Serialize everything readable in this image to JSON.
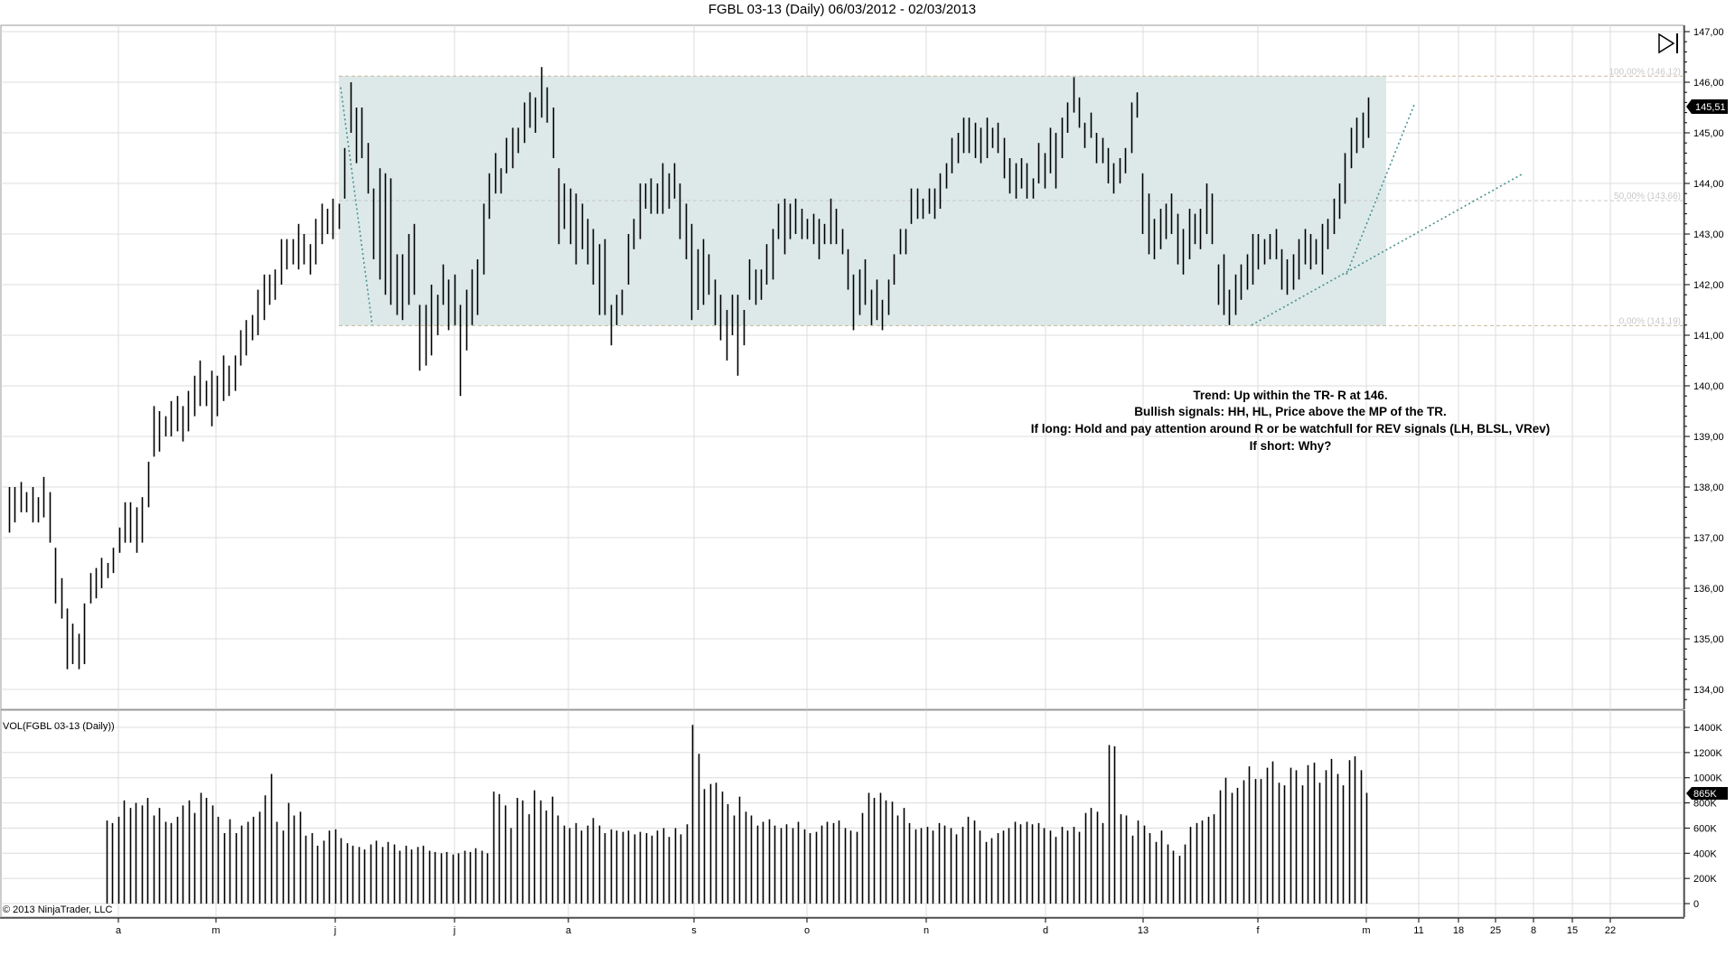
{
  "chart_title": "FGBL 03-13 (Daily)  06/03/2012 - 02/03/2013",
  "copyright": "© 2013 NinjaTrader, LLC",
  "volume_label": "VOL(FGBL 03-13 (Daily))",
  "colors": {
    "bar": "#000000",
    "range_fill": "#dde9e9",
    "range_border": "#c8b89a",
    "trendline": "#4a9090",
    "grid": "#dcdcdc",
    "price_marker_bg": "#000000"
  },
  "annotations": [
    "Trend: Up within the TR- R at 146.",
    "Bullish signals: HH, HL, Price above the MP of the TR.",
    "If long: Hold and pay attention around R or be watchfull for REV signals (LH, BLSL, VRev)",
    "If short: Why?"
  ],
  "fib_levels": [
    {
      "label": "100,00% (146,12)",
      "value": 146.12
    },
    {
      "label": "50,00% (143,66)",
      "value": 143.66
    },
    {
      "label": "0,00% (141,19)",
      "value": 141.19
    }
  ],
  "current_price_label": "145,51",
  "current_volume_label": "865K",
  "chart_data": [
    {
      "type": "ohlc",
      "title": "FGBL 03-13 (Daily)  06/03/2012 - 02/03/2013",
      "ylim": [
        133.8,
        147.1
      ],
      "y_ticks": [
        "147,00",
        "146,00",
        "145,00",
        "144,00",
        "143,00",
        "142,00",
        "141,00",
        "140,00",
        "139,00",
        "138,00",
        "137,00",
        "136,00",
        "135,00",
        "134,00"
      ],
      "x_tick_labels": [
        "a",
        "m",
        "j",
        "j",
        "a",
        "s",
        "o",
        "n",
        "d",
        "13",
        "f",
        "m",
        "11",
        "18",
        "25",
        "8",
        "15",
        "22"
      ],
      "bars_high_low": [
        [
          138.0,
          137.1
        ],
        [
          138.0,
          137.3
        ],
        [
          138.1,
          137.5
        ],
        [
          137.9,
          137.5
        ],
        [
          138.0,
          137.3
        ],
        [
          137.8,
          137.3
        ],
        [
          138.2,
          137.4
        ],
        [
          137.9,
          136.9
        ],
        [
          136.8,
          135.7
        ],
        [
          136.2,
          135.4
        ],
        [
          135.6,
          134.4
        ],
        [
          135.3,
          134.5
        ],
        [
          135.1,
          134.4
        ],
        [
          135.7,
          134.5
        ],
        [
          136.3,
          135.7
        ],
        [
          136.4,
          135.8
        ],
        [
          136.6,
          136.0
        ],
        [
          136.5,
          136.2
        ],
        [
          136.8,
          136.3
        ],
        [
          137.2,
          136.7
        ],
        [
          137.7,
          136.9
        ],
        [
          137.7,
          136.9
        ],
        [
          137.6,
          136.7
        ],
        [
          137.8,
          136.9
        ],
        [
          138.5,
          137.6
        ],
        [
          139.6,
          138.6
        ],
        [
          139.5,
          138.7
        ],
        [
          139.4,
          139.0
        ],
        [
          139.7,
          139.0
        ],
        [
          139.8,
          139.1
        ],
        [
          139.6,
          138.9
        ],
        [
          139.9,
          139.1
        ],
        [
          140.2,
          139.4
        ],
        [
          140.5,
          139.6
        ],
        [
          140.1,
          139.6
        ],
        [
          140.3,
          139.2
        ],
        [
          140.2,
          139.4
        ],
        [
          140.6,
          139.7
        ],
        [
          140.4,
          139.8
        ],
        [
          140.6,
          139.9
        ],
        [
          141.1,
          140.4
        ],
        [
          141.3,
          140.6
        ],
        [
          141.4,
          140.9
        ],
        [
          141.9,
          141.0
        ],
        [
          142.2,
          141.3
        ],
        [
          142.2,
          141.6
        ],
        [
          142.3,
          141.7
        ],
        [
          142.9,
          142.0
        ],
        [
          142.9,
          142.3
        ],
        [
          142.9,
          142.4
        ],
        [
          143.2,
          142.3
        ],
        [
          143.0,
          142.4
        ],
        [
          142.8,
          142.2
        ],
        [
          143.3,
          142.4
        ],
        [
          143.6,
          142.8
        ],
        [
          143.5,
          143.0
        ],
        [
          143.7,
          142.9
        ],
        [
          143.6,
          143.1
        ],
        [
          144.7,
          143.7
        ],
        [
          146.0,
          145.0
        ],
        [
          145.5,
          144.4
        ],
        [
          145.5,
          144.5
        ],
        [
          144.8,
          143.8
        ],
        [
          143.9,
          142.5
        ],
        [
          144.3,
          142.1
        ],
        [
          144.2,
          141.8
        ],
        [
          144.1,
          141.6
        ],
        [
          142.6,
          141.4
        ],
        [
          142.6,
          141.3
        ],
        [
          143.0,
          141.6
        ],
        [
          143.2,
          141.8
        ],
        [
          141.6,
          140.3
        ],
        [
          141.6,
          140.4
        ],
        [
          142.0,
          140.6
        ],
        [
          141.8,
          141.0
        ],
        [
          142.4,
          141.6
        ],
        [
          142.1,
          141.1
        ],
        [
          142.2,
          141.2
        ],
        [
          141.6,
          139.8
        ],
        [
          141.9,
          140.7
        ],
        [
          142.3,
          141.2
        ],
        [
          142.5,
          141.4
        ],
        [
          143.6,
          142.2
        ],
        [
          144.2,
          143.3
        ],
        [
          144.6,
          143.8
        ],
        [
          144.3,
          143.8
        ],
        [
          144.9,
          144.2
        ],
        [
          145.1,
          144.3
        ],
        [
          145.1,
          144.6
        ],
        [
          145.6,
          144.8
        ],
        [
          145.8,
          145.1
        ],
        [
          145.7,
          145.0
        ],
        [
          146.3,
          145.3
        ],
        [
          145.9,
          145.2
        ],
        [
          145.5,
          144.5
        ],
        [
          144.3,
          142.8
        ],
        [
          144.0,
          143.1
        ],
        [
          143.9,
          142.8
        ],
        [
          143.8,
          142.4
        ],
        [
          143.6,
          142.7
        ],
        [
          143.3,
          142.4
        ],
        [
          143.1,
          142.0
        ],
        [
          142.8,
          141.4
        ],
        [
          142.9,
          141.4
        ],
        [
          141.6,
          140.8
        ],
        [
          141.8,
          141.2
        ],
        [
          141.9,
          141.4
        ],
        [
          143.0,
          142.0
        ],
        [
          143.3,
          142.7
        ],
        [
          144.0,
          142.9
        ],
        [
          144.0,
          143.5
        ],
        [
          144.1,
          143.4
        ],
        [
          144.0,
          143.4
        ],
        [
          144.4,
          143.4
        ],
        [
          144.2,
          143.5
        ],
        [
          144.4,
          143.7
        ],
        [
          144.0,
          142.9
        ],
        [
          143.6,
          142.5
        ],
        [
          143.2,
          141.3
        ],
        [
          142.7,
          141.5
        ],
        [
          142.9,
          141.6
        ],
        [
          142.6,
          141.8
        ],
        [
          142.1,
          141.2
        ],
        [
          141.8,
          140.9
        ],
        [
          141.5,
          140.5
        ],
        [
          141.8,
          141.0
        ],
        [
          141.8,
          140.2
        ],
        [
          141.5,
          140.8
        ],
        [
          142.5,
          141.7
        ],
        [
          142.3,
          141.6
        ],
        [
          142.3,
          141.7
        ],
        [
          142.8,
          142.0
        ],
        [
          143.1,
          142.1
        ],
        [
          143.6,
          142.9
        ],
        [
          143.7,
          142.6
        ],
        [
          143.6,
          142.9
        ],
        [
          143.7,
          143.0
        ],
        [
          143.5,
          142.9
        ],
        [
          143.3,
          142.9
        ],
        [
          143.4,
          142.8
        ],
        [
          143.3,
          142.5
        ],
        [
          143.2,
          142.8
        ],
        [
          143.7,
          142.8
        ],
        [
          143.5,
          142.8
        ],
        [
          143.1,
          142.6
        ],
        [
          142.7,
          141.9
        ],
        [
          142.2,
          141.1
        ],
        [
          142.3,
          141.4
        ],
        [
          142.5,
          141.6
        ],
        [
          141.9,
          141.2
        ],
        [
          142.1,
          141.3
        ],
        [
          141.7,
          141.1
        ],
        [
          142.1,
          141.4
        ],
        [
          142.6,
          142.0
        ],
        [
          143.1,
          142.6
        ],
        [
          143.1,
          142.6
        ],
        [
          143.9,
          143.2
        ],
        [
          143.9,
          143.3
        ],
        [
          143.7,
          143.3
        ],
        [
          143.9,
          143.4
        ],
        [
          143.9,
          143.3
        ],
        [
          144.2,
          143.5
        ],
        [
          144.4,
          143.9
        ],
        [
          144.9,
          144.2
        ],
        [
          145.0,
          144.4
        ],
        [
          145.3,
          144.6
        ],
        [
          145.3,
          144.6
        ],
        [
          145.2,
          144.5
        ],
        [
          145.1,
          144.4
        ],
        [
          145.3,
          144.5
        ],
        [
          145.1,
          144.7
        ],
        [
          145.2,
          144.6
        ],
        [
          144.9,
          144.1
        ],
        [
          144.5,
          143.8
        ],
        [
          144.4,
          143.7
        ],
        [
          144.5,
          143.9
        ],
        [
          144.4,
          143.7
        ],
        [
          144.1,
          143.7
        ],
        [
          144.8,
          144.0
        ],
        [
          144.6,
          143.9
        ],
        [
          145.1,
          144.2
        ],
        [
          145.0,
          143.9
        ],
        [
          145.3,
          144.5
        ],
        [
          145.6,
          145.0
        ],
        [
          146.1,
          145.4
        ],
        [
          145.7,
          145.1
        ],
        [
          145.2,
          144.7
        ],
        [
          145.4,
          144.9
        ],
        [
          145.0,
          144.4
        ],
        [
          144.9,
          144.4
        ],
        [
          144.7,
          144.0
        ],
        [
          144.4,
          143.8
        ],
        [
          144.5,
          144.0
        ],
        [
          144.7,
          144.2
        ],
        [
          145.6,
          144.6
        ],
        [
          145.8,
          145.3
        ],
        [
          144.2,
          143.0
        ],
        [
          143.8,
          142.6
        ],
        [
          143.3,
          142.5
        ],
        [
          143.5,
          142.7
        ],
        [
          143.6,
          142.9
        ],
        [
          143.8,
          143.0
        ],
        [
          143.4,
          142.4
        ],
        [
          143.1,
          142.2
        ],
        [
          143.5,
          142.5
        ],
        [
          143.4,
          142.8
        ],
        [
          143.5,
          142.7
        ],
        [
          144.0,
          143.0
        ],
        [
          143.8,
          142.8
        ],
        [
          142.4,
          141.6
        ],
        [
          142.6,
          141.4
        ],
        [
          141.9,
          141.2
        ],
        [
          142.2,
          141.4
        ],
        [
          142.4,
          141.7
        ],
        [
          142.6,
          141.9
        ],
        [
          143.0,
          142.0
        ],
        [
          143.0,
          142.3
        ],
        [
          142.9,
          142.4
        ],
        [
          143.0,
          142.5
        ],
        [
          143.1,
          142.5
        ],
        [
          142.7,
          141.9
        ],
        [
          142.5,
          141.8
        ],
        [
          142.6,
          141.9
        ],
        [
          142.9,
          142.1
        ],
        [
          143.1,
          142.4
        ],
        [
          143.0,
          142.3
        ],
        [
          142.9,
          142.4
        ],
        [
          143.2,
          142.2
        ],
        [
          143.3,
          142.7
        ],
        [
          143.7,
          143.0
        ],
        [
          144.0,
          143.3
        ],
        [
          144.6,
          143.6
        ],
        [
          145.1,
          144.3
        ],
        [
          145.3,
          144.6
        ],
        [
          145.4,
          144.7
        ],
        [
          145.7,
          144.9
        ]
      ],
      "range_box": {
        "top": 146.12,
        "bottom": 141.19,
        "midpoint": 143.66
      }
    },
    {
      "type": "bar",
      "title": "VOL(FGBL 03-13 (Daily))",
      "ylim": [
        0,
        1500
      ],
      "y_ticks": [
        "1400K",
        "1200K",
        "1000K",
        "800K",
        "600K",
        "400K",
        "200K",
        "0"
      ],
      "values": [
        660,
        640,
        690,
        820,
        760,
        800,
        780,
        840,
        700,
        760,
        650,
        640,
        690,
        780,
        820,
        720,
        880,
        840,
        780,
        690,
        560,
        670,
        560,
        620,
        650,
        690,
        730,
        860,
        1030,
        650,
        580,
        800,
        700,
        730,
        540,
        560,
        460,
        500,
        580,
        590,
        520,
        480,
        460,
        450,
        430,
        470,
        500,
        450,
        490,
        470,
        420,
        460,
        430,
        450,
        460,
        420,
        410,
        400,
        410,
        390,
        400,
        420,
        410,
        440,
        420,
        400,
        890,
        870,
        780,
        600,
        840,
        820,
        710,
        900,
        820,
        740,
        850,
        700,
        620,
        600,
        640,
        580,
        620,
        680,
        620,
        560,
        590,
        580,
        570,
        580,
        550,
        570,
        560,
        540,
        580,
        600,
        530,
        600,
        550,
        630,
        1420,
        1190,
        910,
        950,
        960,
        890,
        790,
        700,
        850,
        730,
        700,
        620,
        650,
        670,
        620,
        600,
        630,
        600,
        650,
        590,
        560,
        570,
        620,
        650,
        640,
        660,
        600,
        580,
        570,
        720,
        880,
        840,
        880,
        820,
        810,
        700,
        760,
        640,
        590,
        600,
        610,
        580,
        640,
        620,
        600,
        550,
        610,
        690,
        660,
        580,
        490,
        520,
        560,
        580,
        600,
        650,
        630,
        650,
        630,
        640,
        600,
        580,
        530,
        610,
        580,
        610,
        570,
        720,
        760,
        730,
        640,
        1260,
        1250,
        710,
        700,
        540,
        660,
        620,
        560,
        490,
        580,
        470,
        420,
        380,
        470,
        610,
        640,
        660,
        690,
        710,
        900,
        1000,
        880,
        920,
        980,
        1090,
        990,
        990,
        1080,
        1130,
        960,
        940,
        1080,
        1060,
        940,
        1100,
        1120,
        960,
        1060,
        1150,
        1030,
        940,
        1140,
        1170,
        1060,
        880
      ]
    }
  ]
}
